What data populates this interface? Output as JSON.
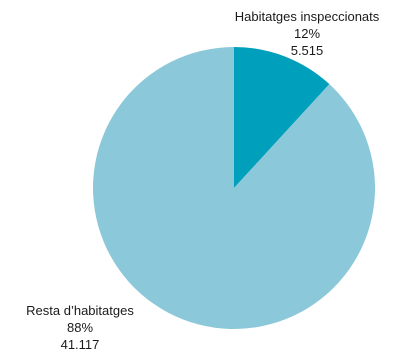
{
  "chart_data": {
    "type": "pie",
    "title": "",
    "slices": [
      {
        "label": "Habitatges inspeccionats",
        "percent": "12%",
        "value_text": "5.515",
        "value": 5515,
        "color": "#00a0bc"
      },
      {
        "label": "Resta d’habitatges",
        "percent": "88%",
        "value_text": "41.117",
        "value": 41117,
        "color": "#8bc8d9"
      }
    ],
    "start_angle": "12 o'clock",
    "direction": "clockwise",
    "legend": "none"
  }
}
